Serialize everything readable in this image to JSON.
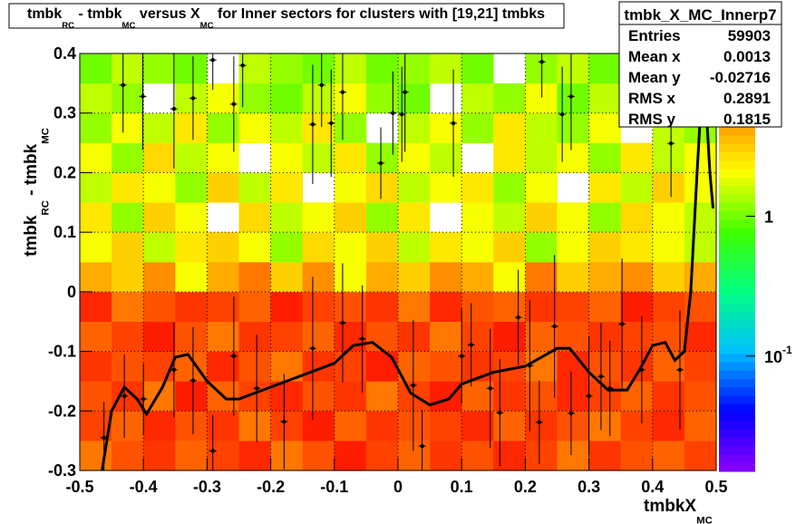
{
  "chart_data": {
    "type": "heatmap",
    "title": [
      {
        "text": "tmbk"
      },
      {
        "text": "RC",
        "sub": true
      },
      {
        "text": " - tmbk"
      },
      {
        "text": "MC",
        "sub": true
      },
      {
        "text": " versus X"
      },
      {
        "text": "MC",
        "sub": true
      },
      {
        "text": " for Inner sectors for clusters with [19,21] tmbks"
      }
    ],
    "x_label": [
      {
        "text": "tmbkX"
      },
      {
        "text": "MC",
        "sub": true
      }
    ],
    "y_label": [
      {
        "text": "tmbk"
      },
      {
        "text": "RC",
        "sub": true
      },
      {
        "text": " - tmbk"
      },
      {
        "text": "MC",
        "sub": true
      }
    ],
    "xlim": [
      -0.5,
      0.5
    ],
    "ylim": [
      -0.3,
      0.4
    ],
    "xticks": [
      -0.5,
      -0.4,
      -0.3,
      -0.2,
      -0.1,
      0,
      0.1,
      0.2,
      0.3,
      0.4,
      0.5
    ],
    "yticks": [
      -0.3,
      -0.2,
      -0.1,
      0,
      0.1,
      0.2,
      0.3,
      0.4
    ],
    "grid": true,
    "zlim": [
      0.015,
      15
    ],
    "zlog": true,
    "zticks": [
      {
        "value": 1,
        "label": "1"
      },
      {
        "value": 0.1,
        "label": "10",
        "exponent": "-1"
      }
    ],
    "palette": [
      "#8b00ff",
      "#0000ff",
      "#00c0ff",
      "#00ff80",
      "#40ff00",
      "#ffff00",
      "#ff8000",
      "#ff0000"
    ],
    "xbins": [
      -0.5,
      -0.45,
      -0.4,
      -0.35,
      -0.3,
      -0.25,
      -0.2,
      -0.15,
      -0.1,
      -0.05,
      0,
      0.05,
      0.1,
      0.15,
      0.2,
      0.25,
      0.3,
      0.35,
      0.4,
      0.45,
      0.5
    ],
    "ybins": [
      -0.3,
      -0.25,
      -0.2,
      -0.15,
      -0.1,
      -0.05,
      0,
      0.05,
      0.1,
      0.15,
      0.2,
      0.25,
      0.3,
      0.35,
      0.4
    ],
    "z": [
      [
        6,
        8,
        10,
        7,
        9,
        11,
        6,
        8,
        12,
        9,
        7,
        10,
        8,
        11,
        9,
        6,
        10,
        8,
        7,
        9
      ],
      [
        9,
        7,
        11,
        8,
        10,
        6,
        9,
        12,
        7,
        10,
        8,
        9,
        11,
        7,
        10,
        8,
        6,
        9,
        11,
        7
      ],
      [
        8,
        10,
        6,
        12,
        7,
        9,
        11,
        8,
        10,
        6,
        9,
        12,
        7,
        10,
        8,
        11,
        9,
        7,
        10,
        8
      ],
      [
        10,
        8,
        9,
        7,
        11,
        8,
        6,
        10,
        9,
        12,
        7,
        8,
        10,
        9,
        6,
        11,
        8,
        10,
        7,
        9
      ],
      [
        7,
        9,
        12,
        8,
        6,
        10,
        9,
        7,
        11,
        8,
        10,
        6,
        9,
        12,
        7,
        8,
        10,
        9,
        8,
        11
      ],
      [
        11,
        6,
        8,
        10,
        9,
        7,
        12,
        9,
        8,
        10,
        6,
        11,
        8,
        7,
        10,
        9,
        7,
        12,
        9,
        8
      ],
      [
        4,
        3,
        5,
        2,
        4,
        6,
        3,
        5,
        2,
        4,
        3,
        5,
        4,
        2,
        6,
        3,
        4,
        5,
        3,
        4
      ],
      [
        2,
        3,
        1.5,
        2.5,
        3,
        2,
        1.2,
        2.8,
        2,
        3,
        1.5,
        2.5,
        2,
        3,
        1.2,
        2,
        3,
        2.5,
        2,
        1.5
      ],
      [
        2.5,
        1.2,
        3,
        2,
        0,
        2.8,
        1.5,
        2,
        3,
        1.2,
        2.5,
        0,
        2,
        1.5,
        3,
        2,
        1.2,
        2.8,
        2,
        1.5
      ],
      [
        1.5,
        2.5,
        2,
        1.2,
        3,
        1.5,
        2.5,
        0,
        2,
        2.8,
        1.5,
        2,
        2.5,
        1.2,
        2,
        0,
        2.5,
        1.5,
        3,
        2
      ],
      [
        2,
        1.2,
        2.8,
        1.5,
        2,
        0,
        2,
        1.5,
        2.5,
        1.2,
        2,
        1.5,
        0,
        2.5,
        1.5,
        2,
        1.2,
        2.5,
        1.5,
        2
      ],
      [
        1.2,
        2,
        1.5,
        2.5,
        1.2,
        2,
        1.5,
        2.5,
        1.2,
        0,
        1.5,
        2,
        1.2,
        2.5,
        1.5,
        1.2,
        2,
        0,
        1.5,
        1.2
      ],
      [
        1.5,
        1.2,
        0,
        1.5,
        2,
        1.2,
        1,
        1.5,
        2,
        1.2,
        1,
        0,
        1.5,
        1.2,
        2,
        1,
        1.5,
        1.2,
        0,
        1
      ],
      [
        1,
        1.5,
        1.2,
        1,
        0,
        1.5,
        1.2,
        1,
        1.5,
        1,
        1.2,
        1.5,
        1,
        0,
        1.2,
        1.5,
        1,
        1.2,
        1.5,
        1
      ]
    ],
    "profile": {
      "x": [
        -0.462,
        -0.432,
        -0.43,
        -0.401,
        -0.4,
        -0.352,
        -0.352,
        -0.322,
        -0.322,
        -0.291,
        -0.291,
        -0.258,
        -0.258,
        -0.244,
        -0.222,
        -0.179,
        -0.134,
        -0.134,
        -0.12,
        -0.105,
        -0.087,
        -0.087,
        -0.056,
        -0.027,
        -0.008,
        0.006,
        0.011,
        0.024,
        0.038,
        0.087,
        0.1,
        0.115,
        0.145,
        0.16,
        0.189,
        0.207,
        0.222,
        0.226,
        0.246,
        0.258,
        0.272,
        0.272,
        0.3,
        0.319,
        0.333,
        0.352,
        0.383,
        0.399,
        0.413,
        0.429,
        0.443
      ],
      "y": [
        -0.245,
        0.347,
        -0.175,
        0.328,
        -0.18,
        0.307,
        -0.131,
        0.325,
        -0.149,
        0.389,
        -0.267,
        0.315,
        -0.108,
        0.38,
        -0.162,
        -0.218,
        0.281,
        -0.095,
        0.347,
        0.283,
        -0.052,
        0.335,
        -0.079,
        0.216,
        0.3,
        0.298,
        0.335,
        -0.157,
        -0.259,
        0.283,
        -0.108,
        -0.089,
        -0.162,
        -0.203,
        -0.043,
        -0.124,
        -0.219,
        0.386,
        -0.058,
        0.298,
        0.328,
        -0.204,
        -0.175,
        -0.142,
        -0.162,
        -0.054,
        -0.131,
        0.371,
        0.38,
        0.249,
        -0.131
      ],
      "err": [
        0.06,
        0.08,
        0.07,
        0.09,
        0.06,
        0.1,
        0.08,
        0.07,
        0.09,
        0.05,
        0.06,
        0.08,
        0.1,
        0.07,
        0.09,
        0.08,
        0.1,
        0.12,
        0.07,
        0.09,
        0.1,
        0.08,
        0.09,
        0.06,
        0.07,
        0.08,
        0.1,
        0.11,
        0.06,
        0.09,
        0.08,
        0.07,
        0.1,
        0.09,
        0.08,
        0.11,
        0.07,
        0.06,
        0.12,
        0.08,
        0.09,
        0.07,
        0.1,
        0.09,
        0.08,
        0.11,
        0.09,
        0.05,
        0.07,
        0.09,
        0.1
      ]
    },
    "fit": {
      "x": [
        -0.465,
        -0.45,
        -0.43,
        -0.41,
        -0.395,
        -0.37,
        -0.35,
        -0.33,
        -0.3,
        -0.27,
        -0.25,
        -0.2,
        -0.15,
        -0.1,
        -0.07,
        -0.04,
        -0.01,
        0.02,
        0.05,
        0.08,
        0.1,
        0.15,
        0.2,
        0.25,
        0.27,
        0.3,
        0.33,
        0.36,
        0.38,
        0.4,
        0.42,
        0.435,
        0.45,
        0.46,
        0.47,
        0.48,
        0.49,
        0.495
      ],
      "y": [
        -0.3,
        -0.2,
        -0.16,
        -0.18,
        -0.205,
        -0.16,
        -0.11,
        -0.105,
        -0.15,
        -0.18,
        -0.18,
        -0.16,
        -0.14,
        -0.12,
        -0.09,
        -0.085,
        -0.11,
        -0.17,
        -0.19,
        -0.18,
        -0.155,
        -0.135,
        -0.125,
        -0.095,
        -0.095,
        -0.135,
        -0.165,
        -0.165,
        -0.13,
        -0.09,
        -0.085,
        -0.115,
        -0.1,
        0,
        0.2,
        0.39,
        0.2,
        0.14
      ]
    },
    "stats": {
      "name": "tmbk_X_MC_Innerp7",
      "rows": [
        [
          "Entries",
          59903
        ],
        [
          "Mean x",
          0.0013
        ],
        [
          "Mean y",
          -0.02716
        ],
        [
          "RMS x",
          0.2891
        ],
        [
          "RMS y",
          0.1815
        ]
      ]
    }
  }
}
